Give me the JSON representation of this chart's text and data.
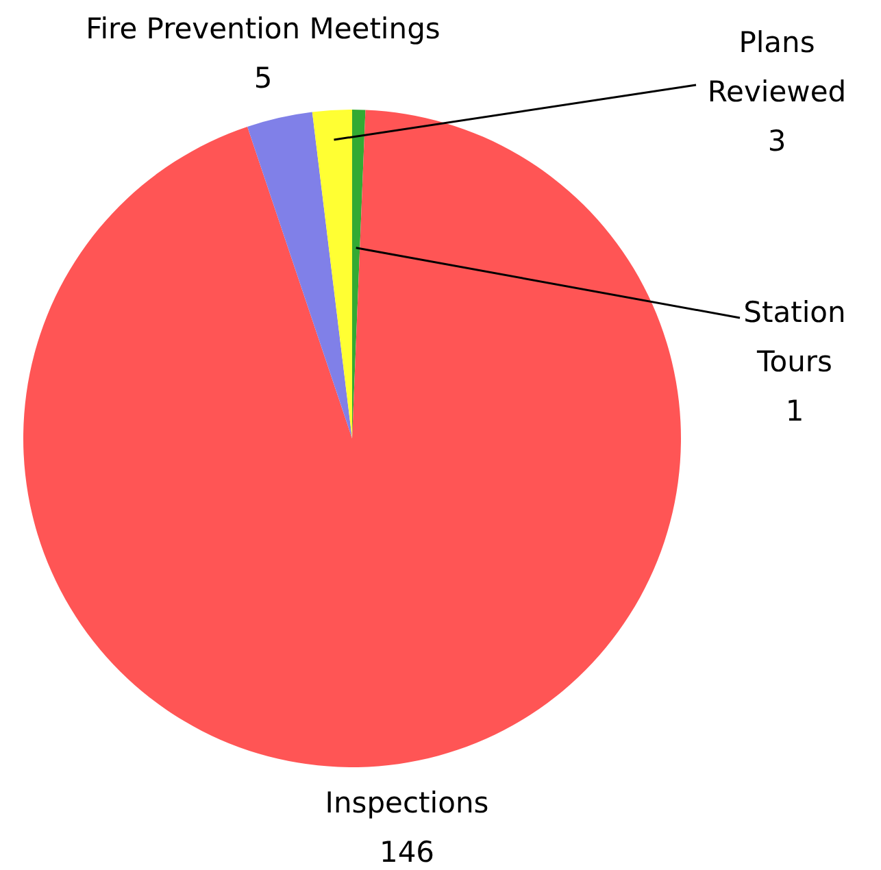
{
  "chart_data": {
    "type": "pie",
    "categories": [
      "Station Tours",
      "Inspections",
      "Fire Prevention Meetings",
      "Plans Reviewed"
    ],
    "values": [
      1,
      146,
      5,
      3
    ],
    "colors": [
      "#33aa33",
      "#ff5555",
      "#8080e8",
      "#ffff33"
    ],
    "data_labels": true
  }
}
